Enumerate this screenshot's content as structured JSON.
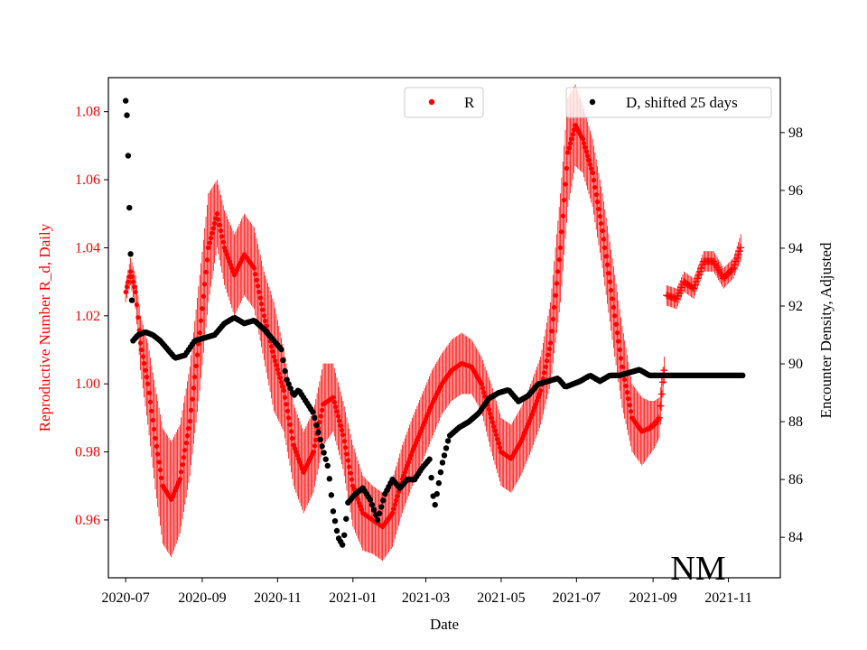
{
  "chart_data": {
    "type": "scatter",
    "xlabel": "Date",
    "ylabel_left": "Reproductive Number R_d, Daily",
    "ylabel_right": "Encounter Density, Adjusted",
    "annotation": "NM",
    "colors": {
      "r_series": "#ff0000",
      "d_series": "#000000",
      "left_axis": "#ff0000",
      "right_axis": "#000000"
    },
    "x_range_days": [
      -14,
      530
    ],
    "left_ylim": [
      0.943,
      1.09
    ],
    "right_ylim": [
      82.6,
      99.9
    ],
    "x_ticks": [
      {
        "label": "2020-07",
        "day": 0
      },
      {
        "label": "2020-09",
        "day": 62
      },
      {
        "label": "2020-11",
        "day": 123
      },
      {
        "label": "2021-01",
        "day": 184
      },
      {
        "label": "2021-03",
        "day": 243
      },
      {
        "label": "2021-05",
        "day": 304
      },
      {
        "label": "2021-07",
        "day": 365
      },
      {
        "label": "2021-09",
        "day": 427
      },
      {
        "label": "2021-11",
        "day": 488
      }
    ],
    "left_ticks": [
      "0.96",
      "0.98",
      "1.00",
      "1.02",
      "1.04",
      "1.06",
      "1.08"
    ],
    "right_ticks": [
      "84",
      "86",
      "88",
      "90",
      "92",
      "94",
      "96",
      "98"
    ],
    "legend": [
      {
        "label": "R",
        "color": "#ff0000",
        "position": "top-center"
      },
      {
        "label": "D, shifted 25 days",
        "color": "#000000",
        "position": "top-right"
      }
    ],
    "series_R": {
      "name": "R",
      "style": "points with error bars",
      "knots_day_value_err": [
        [
          0,
          1.027,
          0.003
        ],
        [
          4,
          1.033,
          0.004
        ],
        [
          8,
          1.027,
          0.005
        ],
        [
          12,
          1.012,
          0.008
        ],
        [
          18,
          1.0,
          0.012
        ],
        [
          24,
          0.984,
          0.015
        ],
        [
          30,
          0.97,
          0.017
        ],
        [
          37,
          0.966,
          0.017
        ],
        [
          44,
          0.972,
          0.016
        ],
        [
          52,
          0.989,
          0.016
        ],
        [
          60,
          1.015,
          0.017
        ],
        [
          67,
          1.04,
          0.016
        ],
        [
          74,
          1.05,
          0.01
        ],
        [
          80,
          1.04,
          0.011
        ],
        [
          88,
          1.032,
          0.012
        ],
        [
          96,
          1.038,
          0.012
        ],
        [
          104,
          1.034,
          0.012
        ],
        [
          112,
          1.02,
          0.013
        ],
        [
          120,
          1.008,
          0.016
        ],
        [
          128,
          0.998,
          0.012
        ],
        [
          136,
          0.982,
          0.012
        ],
        [
          144,
          0.974,
          0.012
        ],
        [
          152,
          0.98,
          0.012
        ],
        [
          160,
          0.994,
          0.012
        ],
        [
          168,
          0.996,
          0.01
        ],
        [
          176,
          0.985,
          0.01
        ],
        [
          184,
          0.97,
          0.012
        ],
        [
          192,
          0.962,
          0.011
        ],
        [
          200,
          0.96,
          0.01
        ],
        [
          208,
          0.958,
          0.01
        ],
        [
          216,
          0.962,
          0.01
        ],
        [
          224,
          0.972,
          0.01
        ],
        [
          232,
          0.98,
          0.01
        ],
        [
          240,
          0.987,
          0.01
        ],
        [
          248,
          0.994,
          0.01
        ],
        [
          256,
          1.0,
          0.009
        ],
        [
          264,
          1.004,
          0.009
        ],
        [
          272,
          1.006,
          0.009
        ],
        [
          280,
          1.005,
          0.008
        ],
        [
          288,
          1.0,
          0.008
        ],
        [
          296,
          0.99,
          0.01
        ],
        [
          304,
          0.98,
          0.01
        ],
        [
          312,
          0.978,
          0.01
        ],
        [
          320,
          0.983,
          0.01
        ],
        [
          328,
          0.99,
          0.01
        ],
        [
          336,
          0.998,
          0.01
        ],
        [
          344,
          1.012,
          0.012
        ],
        [
          352,
          1.04,
          0.016
        ],
        [
          358,
          1.068,
          0.016
        ],
        [
          364,
          1.076,
          0.012
        ],
        [
          370,
          1.072,
          0.01
        ],
        [
          378,
          1.062,
          0.01
        ],
        [
          386,
          1.045,
          0.011
        ],
        [
          394,
          1.025,
          0.012
        ],
        [
          402,
          1.005,
          0.012
        ],
        [
          410,
          0.99,
          0.01
        ],
        [
          418,
          0.986,
          0.01
        ],
        [
          424,
          0.987,
          0.008
        ],
        [
          428,
          0.988,
          0.007
        ],
        [
          432,
          0.99,
          0.006
        ],
        [
          436,
          1.004,
          0.004
        ],
        [
          438,
          1.026,
          0.003
        ],
        [
          446,
          1.025,
          0.003
        ],
        [
          452,
          1.03,
          0.003
        ],
        [
          460,
          1.028,
          0.003
        ],
        [
          468,
          1.036,
          0.003
        ],
        [
          476,
          1.036,
          0.003
        ],
        [
          484,
          1.031,
          0.003
        ],
        [
          492,
          1.034,
          0.003
        ],
        [
          498,
          1.04,
          0.004
        ]
      ],
      "markers": "dots with vertical error bars; plus markers after 2021-09"
    },
    "series_D": {
      "name": "D, shifted 25 days",
      "knots_day_value": [
        [
          0,
          99.1
        ],
        [
          1,
          98.6
        ],
        [
          2,
          97.2
        ],
        [
          3,
          95.4
        ],
        [
          4,
          93.8
        ],
        [
          5,
          92.2
        ],
        [
          6,
          90.8
        ],
        [
          10,
          91.0
        ],
        [
          16,
          91.1
        ],
        [
          22,
          91.0
        ],
        [
          28,
          90.8
        ],
        [
          34,
          90.5
        ],
        [
          40,
          90.2
        ],
        [
          48,
          90.3
        ],
        [
          56,
          90.8
        ],
        [
          64,
          90.9
        ],
        [
          72,
          91.0
        ],
        [
          80,
          91.4
        ],
        [
          88,
          91.6
        ],
        [
          96,
          91.4
        ],
        [
          104,
          91.5
        ],
        [
          112,
          91.2
        ],
        [
          120,
          90.8
        ],
        [
          126,
          90.5
        ],
        [
          130,
          89.5
        ],
        [
          136,
          88.9
        ],
        [
          140,
          89.1
        ],
        [
          146,
          88.7
        ],
        [
          152,
          88.3
        ],
        [
          158,
          87.3
        ],
        [
          164,
          86.4
        ],
        [
          168,
          84.9
        ],
        [
          172,
          84.0
        ],
        [
          176,
          83.7
        ],
        [
          180,
          85.2
        ],
        [
          186,
          85.5
        ],
        [
          192,
          85.7
        ],
        [
          198,
          85.3
        ],
        [
          204,
          84.6
        ],
        [
          210,
          85.5
        ],
        [
          216,
          86.0
        ],
        [
          222,
          85.7
        ],
        [
          228,
          86.0
        ],
        [
          234,
          86.0
        ],
        [
          240,
          86.4
        ],
        [
          246,
          86.7
        ],
        [
          250,
          85.0
        ],
        [
          256,
          86.5
        ],
        [
          262,
          87.5
        ],
        [
          270,
          87.8
        ],
        [
          278,
          88.0
        ],
        [
          286,
          88.3
        ],
        [
          294,
          88.8
        ],
        [
          302,
          89.0
        ],
        [
          310,
          89.1
        ],
        [
          318,
          88.7
        ],
        [
          326,
          88.9
        ],
        [
          334,
          89.3
        ],
        [
          342,
          89.4
        ],
        [
          350,
          89.5
        ],
        [
          356,
          89.2
        ],
        [
          362,
          89.3
        ],
        [
          368,
          89.4
        ],
        [
          376,
          89.6
        ],
        [
          384,
          89.4
        ],
        [
          392,
          89.6
        ],
        [
          400,
          89.6
        ],
        [
          408,
          89.7
        ],
        [
          416,
          89.8
        ],
        [
          424,
          89.6
        ],
        [
          432,
          89.6
        ],
        [
          438,
          89.6
        ],
        [
          500,
          89.6
        ]
      ]
    }
  }
}
